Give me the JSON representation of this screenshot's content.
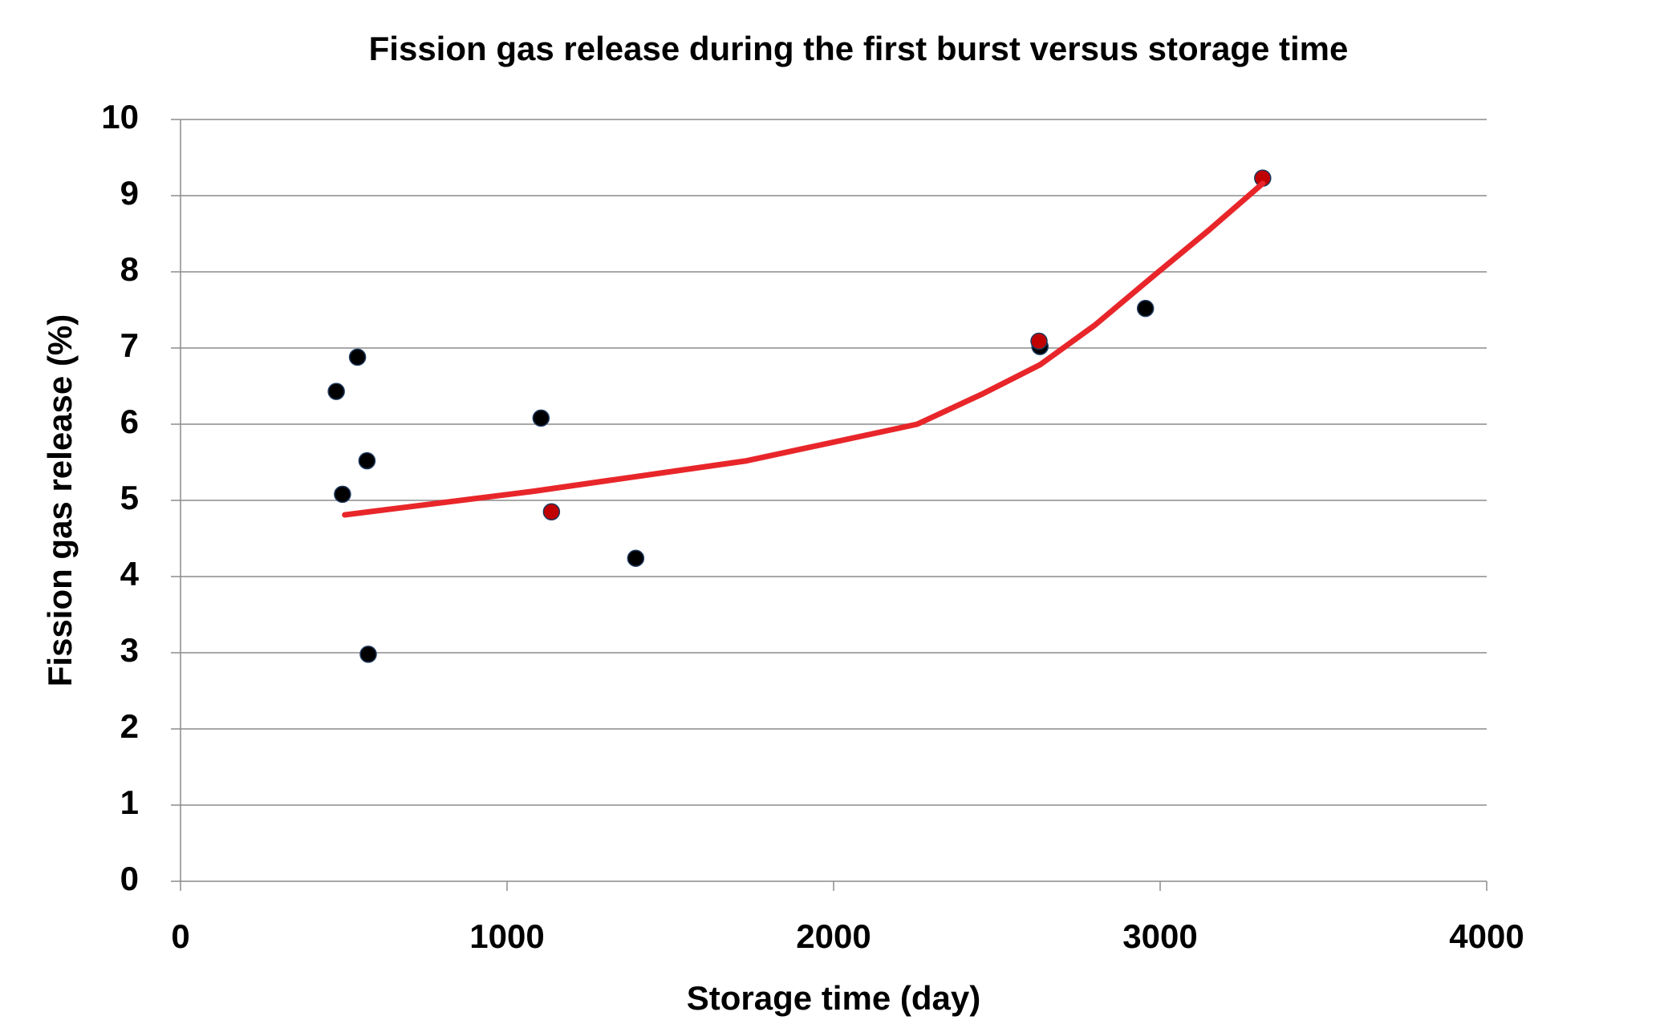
{
  "chart_data": {
    "type": "scatter",
    "title": "Fission gas release during the first burst versus storage time",
    "xlabel": "Storage time (day)",
    "ylabel": "Fission gas release (%)",
    "xlim": [
      0,
      4000
    ],
    "xticks": [
      0,
      1000,
      2000,
      3000,
      4000
    ],
    "ylim": [
      0,
      10
    ],
    "yticks": [
      0,
      1,
      2,
      3,
      4,
      5,
      6,
      7,
      8,
      9,
      10
    ],
    "grid": true,
    "series": [
      {
        "color": "#000000",
        "mode": "markers",
        "x": [
          477,
          542,
          571,
          496,
          575,
          1104,
          1394,
          2632,
          2955
        ],
        "values": [
          6.43,
          6.88,
          5.52,
          5.08,
          2.98,
          6.08,
          4.24,
          7.02,
          7.52
        ]
      },
      {
        "color": "#c00000",
        "mode": "markers",
        "x": [
          1136,
          2629,
          3314
        ],
        "values": [
          4.85,
          7.09,
          9.23
        ]
      },
      {
        "color": "#e8262a",
        "mode": "line",
        "x": [
          503,
          1081,
          1734,
          2256,
          2452,
          2632,
          2800,
          2975,
          3150,
          3314
        ],
        "values": [
          4.81,
          5.12,
          5.52,
          6.0,
          6.39,
          6.78,
          7.3,
          7.93,
          8.55,
          9.16
        ]
      }
    ]
  }
}
